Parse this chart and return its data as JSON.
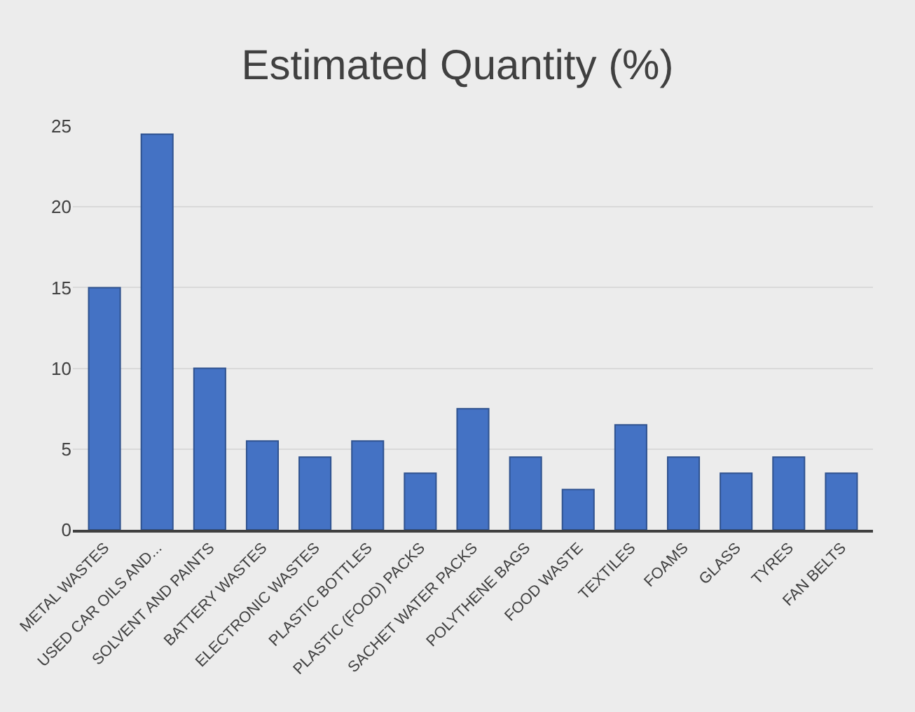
{
  "chart_data": {
    "type": "bar",
    "title": "Estimated Quantity (%)",
    "categories": [
      "METAL WASTES",
      "USED CAR OILS AND...",
      "SOLVENT AND PAINTS",
      "BATTERY WASTES",
      "ELECTRONIC WASTES",
      "PLASTIC BOTTLES",
      "PLASTIC (FOOD) PACKS",
      "SACHET WATER PACKS",
      "POLYTHENE BAGS",
      "FOOD WASTE",
      "TEXTILES",
      "FOAMS",
      "GLASS",
      "TYRES",
      "FAN BELTS"
    ],
    "values": [
      15,
      24.5,
      10,
      5.5,
      4.5,
      5.5,
      3.5,
      7.5,
      4.5,
      2.5,
      6.5,
      4.5,
      3.5,
      4.5,
      3.5
    ],
    "color": "#4472c4",
    "ylim": [
      0,
      25
    ],
    "yticks": [
      0,
      5,
      10,
      15,
      20,
      25
    ],
    "grid": "y"
  }
}
